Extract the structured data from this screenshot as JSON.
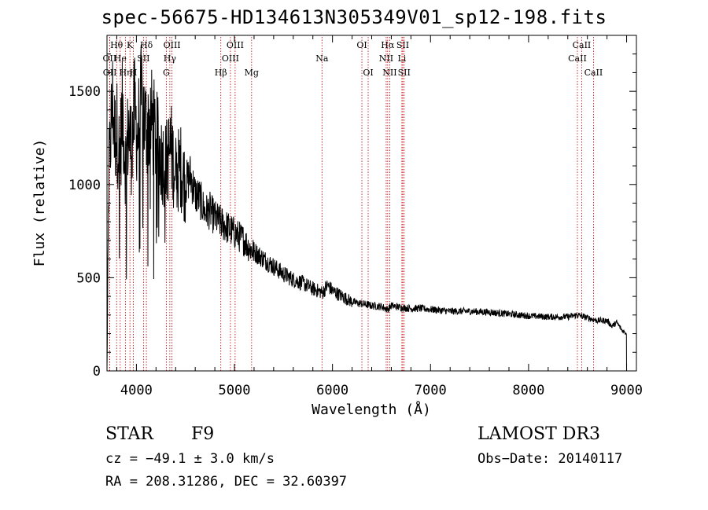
{
  "chart_data": {
    "type": "line",
    "title": "spec-56675-HD134613N305349V01_sp12-198.fits",
    "xlabel": "Wavelength (Å)",
    "ylabel": "Flux (relative)",
    "xlim": [
      3700,
      9100
    ],
    "ylim": [
      0,
      1800
    ],
    "xticks": [
      4000,
      5000,
      6000,
      7000,
      8000,
      9000
    ],
    "yticks": [
      0,
      500,
      1000,
      1500
    ],
    "grid": false,
    "series": [
      {
        "name": "flux",
        "x": [
          3700,
          3720,
          3740,
          3760,
          3780,
          3800,
          3830,
          3860,
          3890,
          3920,
          3950,
          3980,
          4010,
          4050,
          4100,
          4150,
          4200,
          4250,
          4300,
          4350,
          4400,
          4450,
          4500,
          4550,
          4600,
          4650,
          4700,
          4750,
          4800,
          4850,
          4900,
          4950,
          5000,
          5050,
          5100,
          5150,
          5200,
          5300,
          5400,
          5500,
          5600,
          5700,
          5800,
          5900,
          5950,
          6000,
          6100,
          6200,
          6300,
          6400,
          6500,
          6563,
          6600,
          6700,
          6800,
          6900,
          7000,
          7200,
          7400,
          7600,
          7800,
          8000,
          8200,
          8400,
          8500,
          8600,
          8700,
          8800,
          8850,
          8900,
          8950,
          9000
        ],
        "y": [
          0,
          1100,
          1300,
          1450,
          1250,
          1300,
          1150,
          1400,
          1100,
          1300,
          1200,
          1400,
          1250,
          1450,
          1300,
          1350,
          1250,
          1150,
          1100,
          1200,
          1050,
          1100,
          1000,
          1050,
          950,
          920,
          850,
          860,
          820,
          800,
          780,
          760,
          740,
          720,
          700,
          660,
          640,
          600,
          560,
          520,
          490,
          470,
          440,
          420,
          460,
          430,
          400,
          370,
          360,
          350,
          345,
          330,
          350,
          340,
          335,
          335,
          330,
          320,
          320,
          315,
          305,
          295,
          290,
          290,
          300,
          285,
          270,
          270,
          240,
          260,
          220,
          200
        ]
      }
    ],
    "lines": [
      {
        "label": "Hθ",
        "wl": 3798,
        "row": 1
      },
      {
        "label": "OII",
        "wl": 3727,
        "row": 2
      },
      {
        "label": "OII",
        "wl": 3729,
        "row": 3
      },
      {
        "label": "He",
        "wl": 3835,
        "row": 2
      },
      {
        "label": "Hη",
        "wl": 3889,
        "row": 3
      },
      {
        "label": "K",
        "wl": 3934,
        "row": 1
      },
      {
        "label": "H",
        "wl": 3969,
        "row": 3
      },
      {
        "label": "SII",
        "wl": 4072,
        "row": 2
      },
      {
        "label": "Hδ",
        "wl": 4102,
        "row": 1
      },
      {
        "label": "OIII",
        "wl": 4363,
        "row": 1
      },
      {
        "label": "Hγ",
        "wl": 4341,
        "row": 2
      },
      {
        "label": "G",
        "wl": 4305,
        "row": 3
      },
      {
        "label": "Hβ",
        "wl": 4861,
        "row": 3
      },
      {
        "label": "OIII",
        "wl": 5007,
        "row": 1
      },
      {
        "label": "OIII",
        "wl": 4959,
        "row": 2
      },
      {
        "label": "Mg",
        "wl": 5175,
        "row": 3
      },
      {
        "label": "Na",
        "wl": 5893,
        "row": 2
      },
      {
        "label": "OI",
        "wl": 6300,
        "row": 1
      },
      {
        "label": "OI",
        "wl": 6364,
        "row": 3
      },
      {
        "label": "Hα",
        "wl": 6563,
        "row": 1
      },
      {
        "label": "NII",
        "wl": 6548,
        "row": 2
      },
      {
        "label": "NII",
        "wl": 6584,
        "row": 3
      },
      {
        "label": "SII",
        "wl": 6717,
        "row": 1
      },
      {
        "label": "Li",
        "wl": 6708,
        "row": 2
      },
      {
        "label": "SII",
        "wl": 6731,
        "row": 3
      },
      {
        "label": "CaII",
        "wl": 8542,
        "row": 1
      },
      {
        "label": "CaII",
        "wl": 8498,
        "row": 2
      },
      {
        "label": "CaII",
        "wl": 8662,
        "row": 3
      }
    ]
  },
  "footer": {
    "object_class": "STAR",
    "subclass": "F9",
    "survey": "LAMOST DR3",
    "cz": "cz = −49.1 ± 3.0 km/s",
    "obs_date": "Obs−Date: 20140117",
    "radec": "RA = 208.31286, DEC =  32.60397"
  },
  "colors": {
    "spectrum": "#000000",
    "line_marker": "#c00000"
  }
}
